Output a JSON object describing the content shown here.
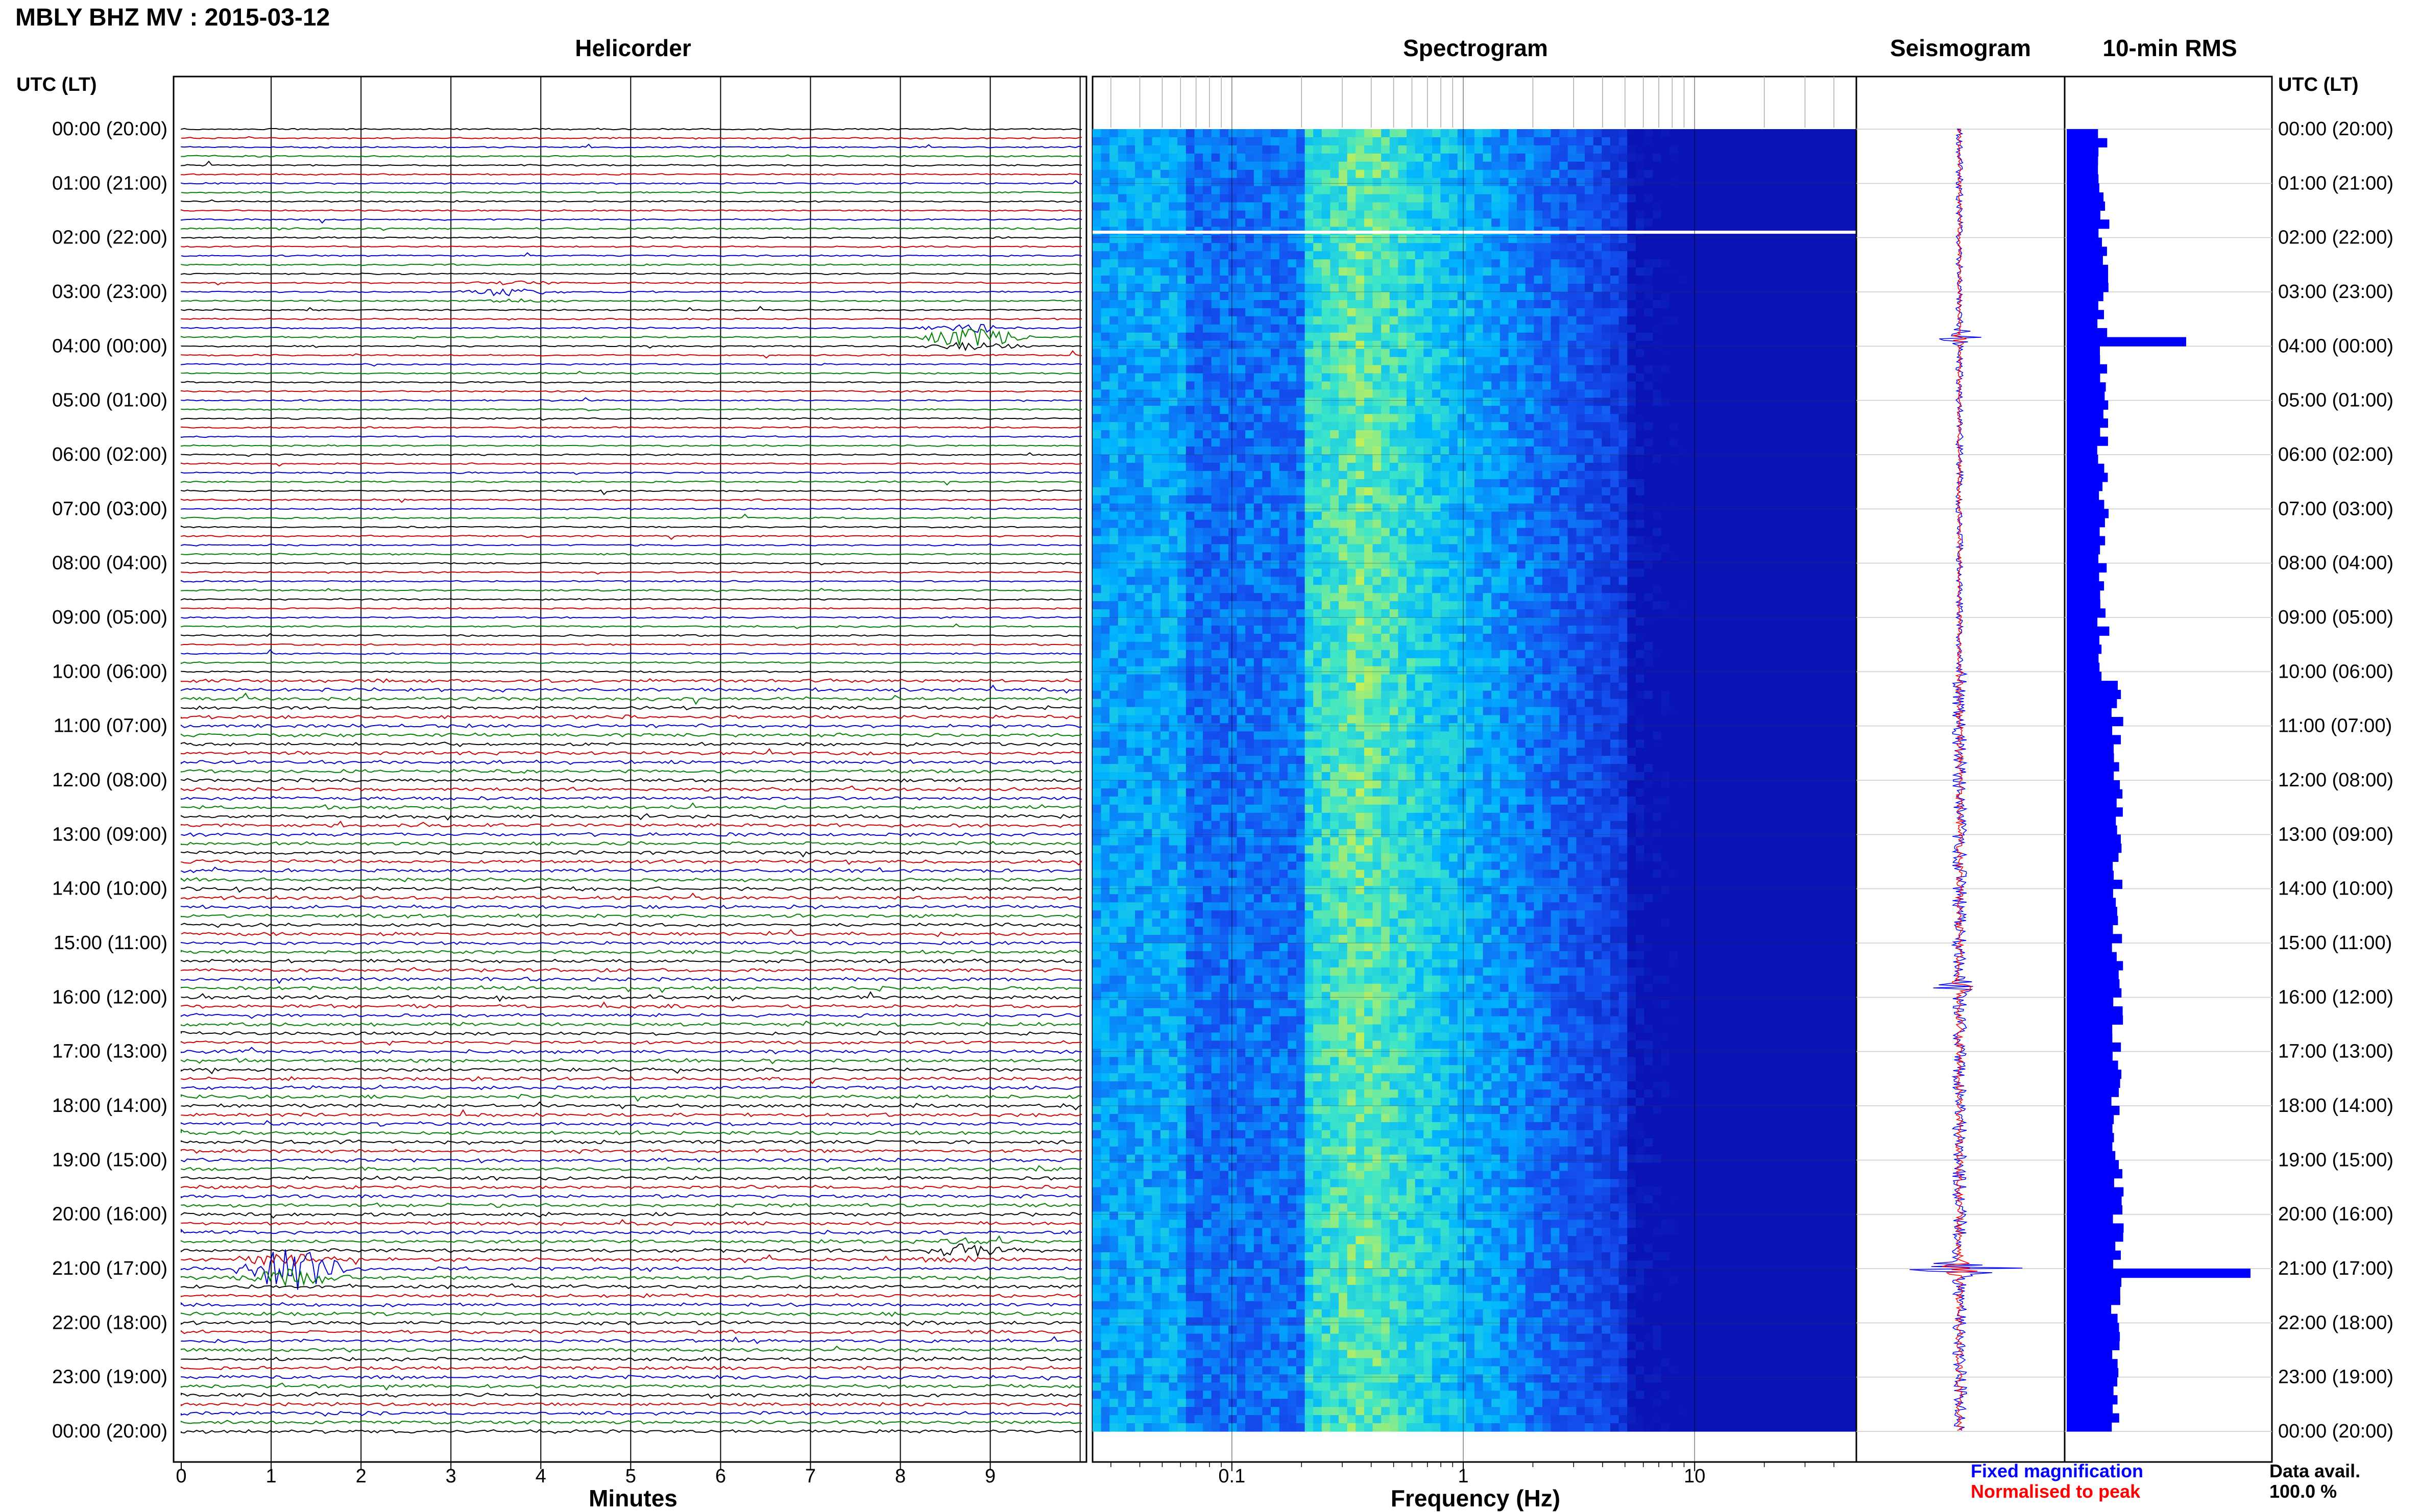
{
  "page_title": "MBLY BHZ MV : 2015-03-12",
  "panels": {
    "helicorder": "Helicorder",
    "spectrogram": "Spectrogram",
    "seismogram": "Seismogram",
    "rms": "10-min RMS"
  },
  "time_axis_label": "UTC (LT)",
  "time_labels": [
    "00:00 (20:00)",
    "01:00 (21:00)",
    "02:00 (22:00)",
    "03:00 (23:00)",
    "04:00 (00:00)",
    "05:00 (01:00)",
    "06:00 (02:00)",
    "07:00 (03:00)",
    "08:00 (04:00)",
    "09:00 (05:00)",
    "10:00 (06:00)",
    "11:00 (07:00)",
    "12:00 (08:00)",
    "13:00 (09:00)",
    "14:00 (10:00)",
    "15:00 (11:00)",
    "16:00 (12:00)",
    "17:00 (13:00)",
    "18:00 (14:00)",
    "19:00 (15:00)",
    "20:00 (16:00)",
    "21:00 (17:00)",
    "22:00 (18:00)",
    "23:00 (19:00)",
    "00:00 (20:00)"
  ],
  "legend": {
    "fixed": "Fixed magnification",
    "normalised": "Normalised to peak",
    "fixed_color": "#0000ff",
    "normalised_color": "#ff0000"
  },
  "data_avail": {
    "label": "Data avail.",
    "value": "100.0 %"
  },
  "colors": {
    "trace_cycle": [
      "#000000",
      "#cc0000",
      "#0000cc",
      "#008000"
    ],
    "rms_fill": "#0000ff",
    "seismo_fixed": "#0000ff",
    "seismo_norm": "#ff0000",
    "spectro_low": "#0a1fd0",
    "spectro_mid": "#00b4ff",
    "spectro_high": "#d6f04a"
  },
  "chart_data": [
    {
      "type": "line",
      "name": "Helicorder",
      "xlabel": "Minutes",
      "x_ticks": [
        0,
        1,
        2,
        3,
        4,
        5,
        6,
        7,
        8,
        9
      ],
      "xlim": [
        0,
        10
      ],
      "lines_per_hour": 6,
      "events": [
        {
          "hour": 3.83,
          "minute": 8.8,
          "amp": 6
        },
        {
          "hour": 21.0,
          "minute": 1.2,
          "amp": 12
        },
        {
          "hour": 20.67,
          "minute": 8.7,
          "amp": 3
        },
        {
          "hour": 3.0,
          "minute": 3.7,
          "amp": 2
        }
      ]
    },
    {
      "type": "heatmap",
      "name": "Spectrogram",
      "xlabel": "Frequency (Hz)",
      "x_scale": "log",
      "xlim": [
        0.025,
        50
      ],
      "x_tick_labels": [
        "0.1",
        "1",
        "10"
      ],
      "x_tick_values": [
        0.1,
        1,
        10
      ],
      "peak_band_hz": [
        0.2,
        0.6
      ],
      "data_gap_hour": 1.9
    },
    {
      "type": "line",
      "name": "Seismogram",
      "series": [
        {
          "name": "Fixed magnification"
        },
        {
          "name": "Normalised to peak"
        }
      ],
      "spikes": [
        {
          "hour": 3.83,
          "amp": 1.0
        },
        {
          "hour": 21.0,
          "amp": 2.0
        },
        {
          "hour": 15.8,
          "amp": 0.8
        }
      ]
    },
    {
      "type": "bar",
      "name": "10-min RMS",
      "orientation": "horizontal",
      "bins_per_hour": 6,
      "base": 0.22,
      "spikes": [
        {
          "bin": 23,
          "value": 0.65
        },
        {
          "bin": 126,
          "value": 1.0
        }
      ]
    }
  ]
}
